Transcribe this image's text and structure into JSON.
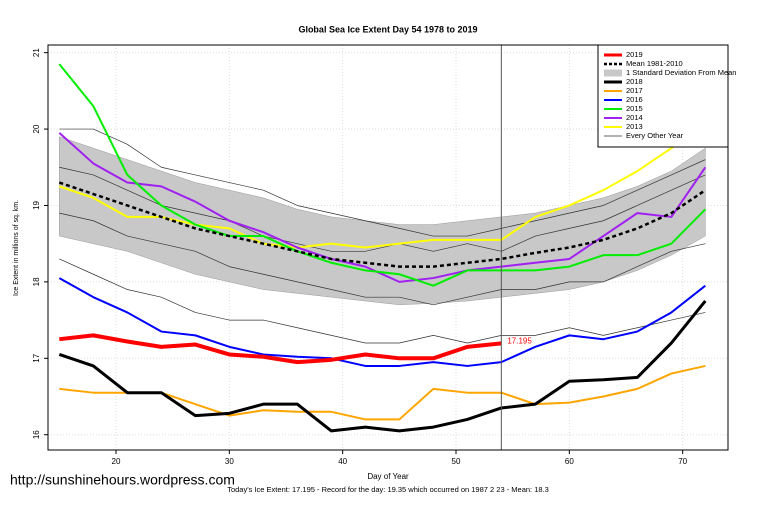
{
  "chart_data": {
    "type": "line",
    "title": "Global Sea Ice Extent Day 54 1978 to 2019",
    "x_label": "Day of Year",
    "y_label": "Ice Extent in millions of sq. km.",
    "footer": "Today's Ice Extent: 17.195  - Record for the day: 19.35 which occurred on 1987 2 23  - Mean: 18.3",
    "watermark": "http://sunshinehours.wordpress.com",
    "current_day": 54,
    "xlim": [
      14,
      74
    ],
    "xticks": [
      20,
      30,
      40,
      50,
      60,
      70
    ],
    "ylim": [
      15.8,
      21.1
    ],
    "yticks": [
      16,
      17,
      18,
      19,
      20,
      21
    ],
    "grid": true,
    "legend": "top-right",
    "x": [
      15,
      18,
      21,
      24,
      27,
      30,
      33,
      36,
      39,
      42,
      45,
      48,
      51,
      54,
      57,
      60,
      63,
      66,
      69,
      72
    ],
    "series": [
      {
        "name": "2019",
        "color": "#ff0000",
        "width": 4,
        "values": [
          17.25,
          17.3,
          17.22,
          17.15,
          17.18,
          17.05,
          17.02,
          16.95,
          16.98,
          17.05,
          17.0,
          17.0,
          17.15,
          17.195,
          null,
          null,
          null,
          null,
          null,
          null
        ]
      },
      {
        "name": "Mean 1981-2010",
        "color": "#000000",
        "width": 2.5,
        "dash": true,
        "values": [
          19.3,
          19.15,
          19.0,
          18.85,
          18.7,
          18.6,
          18.5,
          18.4,
          18.3,
          18.25,
          18.2,
          18.2,
          18.25,
          18.3,
          18.38,
          18.45,
          18.55,
          18.7,
          18.9,
          19.2
        ]
      },
      {
        "name": "1 Standard Deviation From Mean",
        "color": "#c8c8c8",
        "band": true,
        "upper": [
          19.9,
          19.75,
          19.6,
          19.45,
          19.3,
          19.2,
          19.1,
          18.95,
          18.85,
          18.8,
          18.75,
          18.75,
          18.8,
          18.85,
          18.9,
          19.0,
          19.1,
          19.25,
          19.45,
          19.75
        ],
        "lower": [
          18.6,
          18.5,
          18.4,
          18.25,
          18.1,
          18.0,
          17.9,
          17.85,
          17.8,
          17.75,
          17.7,
          17.72,
          17.75,
          17.8,
          17.85,
          17.9,
          18.0,
          18.15,
          18.35,
          18.6
        ]
      },
      {
        "name": "2018",
        "color": "#000000",
        "width": 3,
        "values": [
          17.05,
          16.9,
          16.55,
          16.55,
          16.25,
          16.28,
          16.4,
          16.4,
          16.05,
          16.1,
          16.05,
          16.1,
          16.2,
          16.35,
          16.4,
          16.7,
          16.72,
          16.75,
          17.2,
          17.75
        ]
      },
      {
        "name": "2017",
        "color": "#ffa500",
        "width": 2,
        "values": [
          16.6,
          16.55,
          16.55,
          16.55,
          16.4,
          16.25,
          16.32,
          16.3,
          16.3,
          16.2,
          16.2,
          16.6,
          16.55,
          16.55,
          16.4,
          16.42,
          16.5,
          16.6,
          16.8,
          16.9
        ]
      },
      {
        "name": "2016",
        "color": "#0000ff",
        "width": 2,
        "values": [
          18.05,
          17.8,
          17.6,
          17.35,
          17.3,
          17.15,
          17.05,
          17.02,
          17.0,
          16.9,
          16.9,
          16.95,
          16.9,
          16.95,
          17.15,
          17.3,
          17.25,
          17.35,
          17.6,
          17.95
        ]
      },
      {
        "name": "2015",
        "color": "#00ee00",
        "width": 2,
        "values": [
          20.85,
          20.3,
          19.4,
          19.0,
          18.75,
          18.6,
          18.6,
          18.4,
          18.25,
          18.15,
          18.1,
          17.95,
          18.15,
          18.15,
          18.15,
          18.2,
          18.35,
          18.35,
          18.5,
          18.95
        ]
      },
      {
        "name": "2014",
        "color": "#a020f0",
        "width": 2,
        "values": [
          19.95,
          19.55,
          19.3,
          19.25,
          19.05,
          18.8,
          18.65,
          18.45,
          18.3,
          18.2,
          18.0,
          18.05,
          18.15,
          18.2,
          18.25,
          18.3,
          18.6,
          18.9,
          18.85,
          19.5
        ]
      },
      {
        "name": "2013",
        "color": "#ffff00",
        "width": 2,
        "values": [
          19.25,
          19.1,
          18.85,
          18.85,
          18.75,
          18.7,
          18.5,
          18.45,
          18.5,
          18.45,
          18.5,
          18.55,
          18.55,
          18.55,
          18.85,
          19.0,
          19.2,
          19.45,
          19.75,
          20.05
        ]
      },
      {
        "name": "Every Other Year",
        "color": "#333333",
        "width": 0.7,
        "lines": [
          [
            20.0,
            20.0,
            19.8,
            19.5,
            19.4,
            19.3,
            19.2,
            19.0,
            18.9,
            18.8,
            18.7,
            18.6,
            18.6,
            18.7,
            18.8,
            18.9,
            19.0,
            19.2,
            19.4,
            19.6
          ],
          [
            18.9,
            18.8,
            18.6,
            18.5,
            18.4,
            18.2,
            18.1,
            18.0,
            17.9,
            17.8,
            17.8,
            17.7,
            17.8,
            17.9,
            17.9,
            18.0,
            18.0,
            18.2,
            18.4,
            18.5
          ],
          [
            19.5,
            19.4,
            19.2,
            19.0,
            18.9,
            18.8,
            18.6,
            18.5,
            18.4,
            18.4,
            18.5,
            18.4,
            18.5,
            18.4,
            18.6,
            18.7,
            18.8,
            19.0,
            19.2,
            19.4
          ],
          [
            18.3,
            18.1,
            17.9,
            17.8,
            17.6,
            17.5,
            17.5,
            17.4,
            17.3,
            17.2,
            17.2,
            17.3,
            17.2,
            17.3,
            17.3,
            17.4,
            17.3,
            17.4,
            17.5,
            17.6
          ]
        ]
      }
    ]
  }
}
